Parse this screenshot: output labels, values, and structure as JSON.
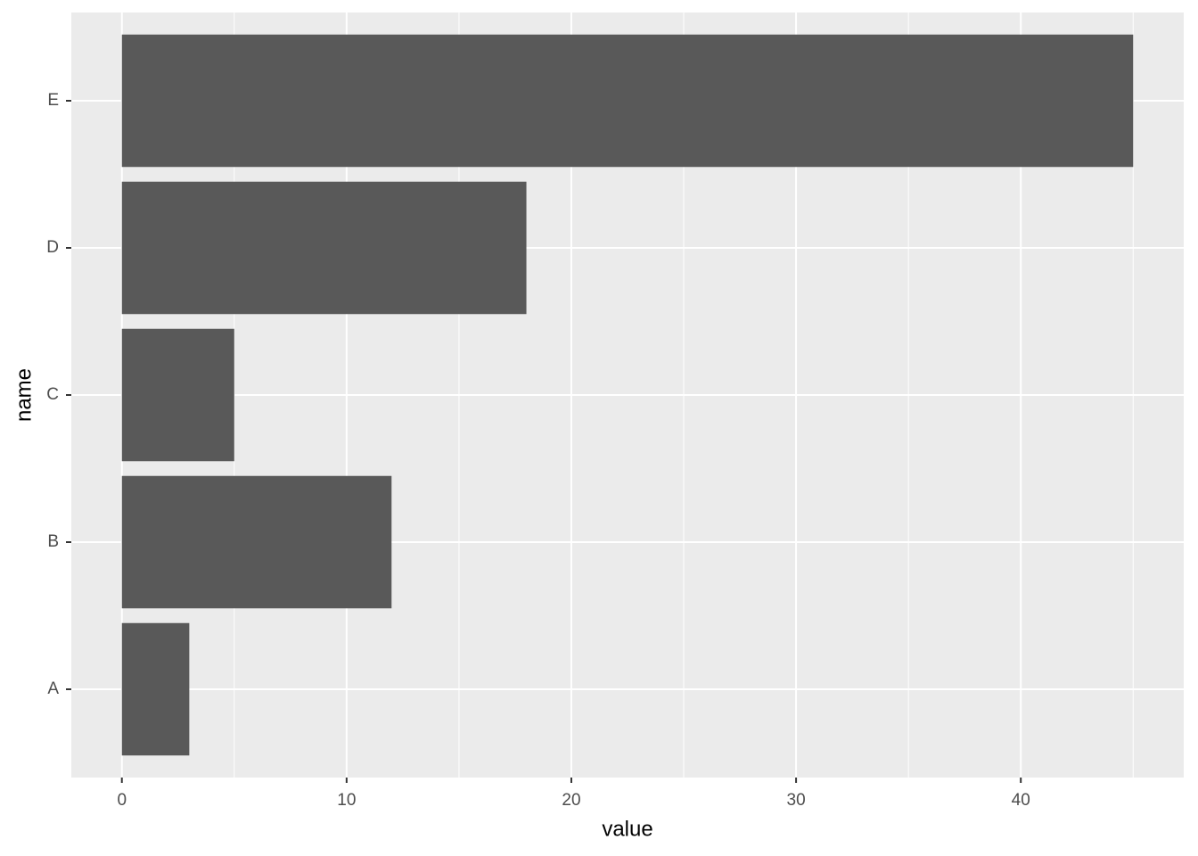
{
  "chart_data": {
    "type": "bar",
    "orientation": "horizontal",
    "categories": [
      "A",
      "B",
      "C",
      "D",
      "E"
    ],
    "values": [
      3,
      12,
      5,
      18,
      45
    ],
    "color": "#595959",
    "xlim": [
      -2.25,
      47.25
    ],
    "xticks": [
      0,
      10,
      20,
      30,
      40
    ],
    "xminor": [
      5,
      15,
      25,
      35,
      45
    ],
    "x_label": "value",
    "y_label": "name",
    "grid": true,
    "background": "#ebebeb"
  }
}
